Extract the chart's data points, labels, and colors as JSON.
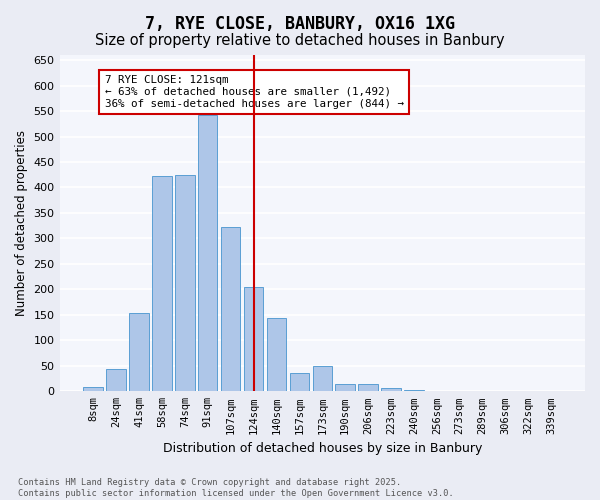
{
  "title": "7, RYE CLOSE, BANBURY, OX16 1XG",
  "subtitle": "Size of property relative to detached houses in Banbury",
  "xlabel": "Distribution of detached houses by size in Banbury",
  "ylabel": "Number of detached properties",
  "categories": [
    "8sqm",
    "24sqm",
    "41sqm",
    "58sqm",
    "74sqm",
    "91sqm",
    "107sqm",
    "124sqm",
    "140sqm",
    "157sqm",
    "173sqm",
    "190sqm",
    "206sqm",
    "223sqm",
    "240sqm",
    "256sqm",
    "273sqm",
    "289sqm",
    "306sqm",
    "322sqm",
    "339sqm"
  ],
  "values": [
    8,
    43,
    153,
    422,
    424,
    543,
    323,
    204,
    143,
    35,
    49,
    15,
    14,
    7,
    3,
    1,
    0,
    0,
    1,
    0,
    0
  ],
  "bar_color": "#aec6e8",
  "bar_edge_color": "#5a9fd4",
  "vline_x": 7,
  "vline_color": "#cc0000",
  "annotation_text": "7 RYE CLOSE: 121sqm\n← 63% of detached houses are smaller (1,492)\n36% of semi-detached houses are larger (844) →",
  "annotation_box_color": "#ffffff",
  "annotation_box_edge": "#cc0000",
  "footer_text": "Contains HM Land Registry data © Crown copyright and database right 2025.\nContains public sector information licensed under the Open Government Licence v3.0.",
  "ylim": [
    0,
    660
  ],
  "yticks": [
    0,
    50,
    100,
    150,
    200,
    250,
    300,
    350,
    400,
    450,
    500,
    550,
    600,
    650
  ],
  "bg_color": "#eaecf4",
  "plot_bg_color": "#f4f6fc",
  "grid_color": "#ffffff",
  "title_fontsize": 12,
  "subtitle_fontsize": 10.5
}
